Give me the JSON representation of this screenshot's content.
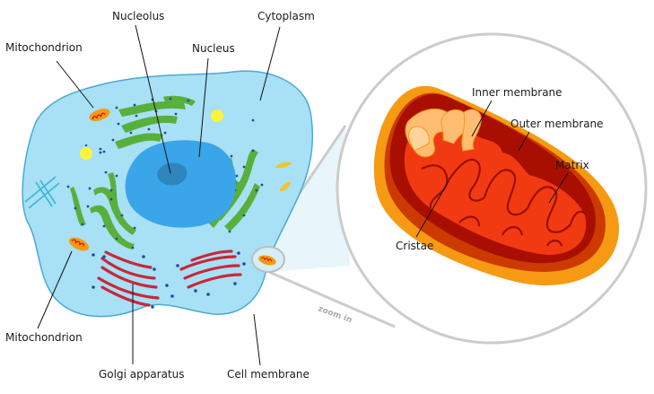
{
  "labels": {
    "nucleolus": "Nucleolus",
    "cytoplasm": "Cytoplasm",
    "mitochondrion_top": "Mitochondrion",
    "nucleus": "Nucleus",
    "mitochondrion_bottom": "Mitochondrion",
    "golgi": "Golgi apparatus",
    "cell_membrane": "Cell membrane",
    "inner_membrane": "Inner membrane",
    "outer_membrane": "Outer membrane",
    "matrix": "Matrix",
    "cristae": "Cristae",
    "zoom_in": "zoom in"
  },
  "colors": {
    "cytoplasm": "#a8e0f5",
    "cell_membrane": "#4aa9d6",
    "nucleus": "#3aa5e8",
    "nucleolus": "#2f85be",
    "er": "#58b03c",
    "golgi": "#c8283a",
    "mito_outer": "#f59a12",
    "mito_inner": "#d01c04",
    "mito_matrix": "#f23a12",
    "cristae_light": "#ffbd73",
    "vacuole": "#fbf43a",
    "zoom_ring": "#cccccc"
  }
}
